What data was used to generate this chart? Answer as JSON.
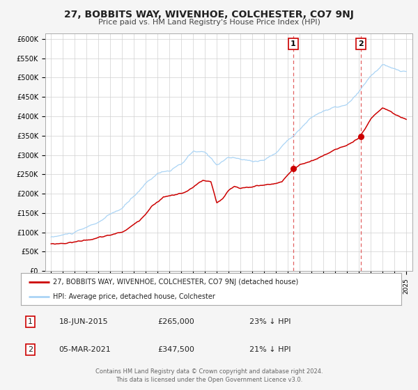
{
  "title": "27, BOBBITS WAY, WIVENHOE, COLCHESTER, CO7 9NJ",
  "subtitle": "Price paid vs. HM Land Registry's House Price Index (HPI)",
  "ylabel_ticks": [
    "£0",
    "£50K",
    "£100K",
    "£150K",
    "£200K",
    "£250K",
    "£300K",
    "£350K",
    "£400K",
    "£450K",
    "£500K",
    "£550K",
    "£600K"
  ],
  "ytick_vals": [
    0,
    50000,
    100000,
    150000,
    200000,
    250000,
    300000,
    350000,
    400000,
    450000,
    500000,
    550000,
    600000
  ],
  "xlim": [
    1994.5,
    2025.5
  ],
  "ylim": [
    0,
    615000
  ],
  "hpi_color": "#aad4f5",
  "price_color": "#cc0000",
  "marker1_date": 2015.46,
  "marker1_price": 265000,
  "marker1_label": "1",
  "marker2_date": 2021.17,
  "marker2_price": 347500,
  "marker2_label": "2",
  "vline_color": "#dd4444",
  "footnote1": "Contains HM Land Registry data © Crown copyright and database right 2024.",
  "footnote2": "This data is licensed under the Open Government Licence v3.0.",
  "legend_price_label": "27, BOBBITS WAY, WIVENHOE, COLCHESTER, CO7 9NJ (detached house)",
  "legend_hpi_label": "HPI: Average price, detached house, Colchester",
  "table_rows": [
    {
      "num": "1",
      "date": "18-JUN-2015",
      "price": "£265,000",
      "pct": "23% ↓ HPI"
    },
    {
      "num": "2",
      "date": "05-MAR-2021",
      "price": "£347,500",
      "pct": "21% ↓ HPI"
    }
  ],
  "background_color": "#f5f5f5",
  "plot_bg_color": "#ffffff"
}
